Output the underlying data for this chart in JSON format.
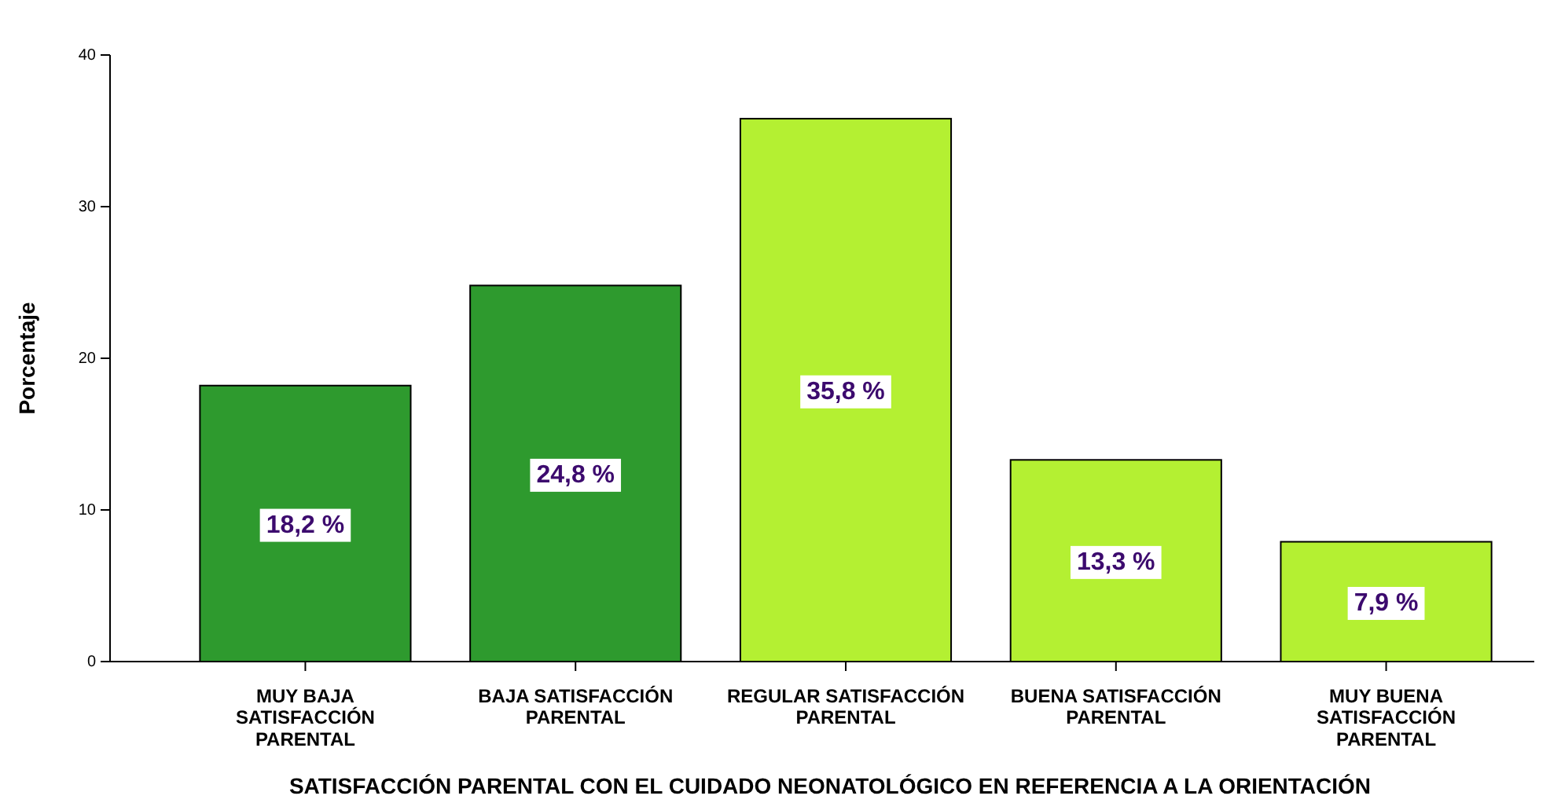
{
  "chart_data": {
    "type": "bar",
    "xlabel": "SATISFACCIÓN PARENTAL CON EL CUIDADO NEONATOLÓGICO EN REFERENCIA A LA ORIENTACIÓN",
    "ylabel": "Porcentaje",
    "categories": [
      "MUY BAJA SATISFACCIÓN PARENTAL",
      "BAJA SATISFACCIÓN PARENTAL",
      "REGULAR SATISFACCIÓN PARENTAL",
      "BUENA SATISFACCIÓN PARENTAL",
      "MUY BUENA SATISFACCIÓN PARENTAL"
    ],
    "values": [
      18.2,
      24.8,
      35.8,
      13.3,
      7.9
    ],
    "value_labels": [
      "18,2 %",
      "24,8 %",
      "35,8 %",
      "13,3 %",
      "7,9 %"
    ],
    "colors": [
      "#2e9a2e",
      "#2e9a2e",
      "#b4f032",
      "#b4f032",
      "#b4f032"
    ],
    "ylim": [
      0,
      40
    ],
    "yticks": [
      0,
      10,
      20,
      30,
      40
    ],
    "grid": false
  }
}
